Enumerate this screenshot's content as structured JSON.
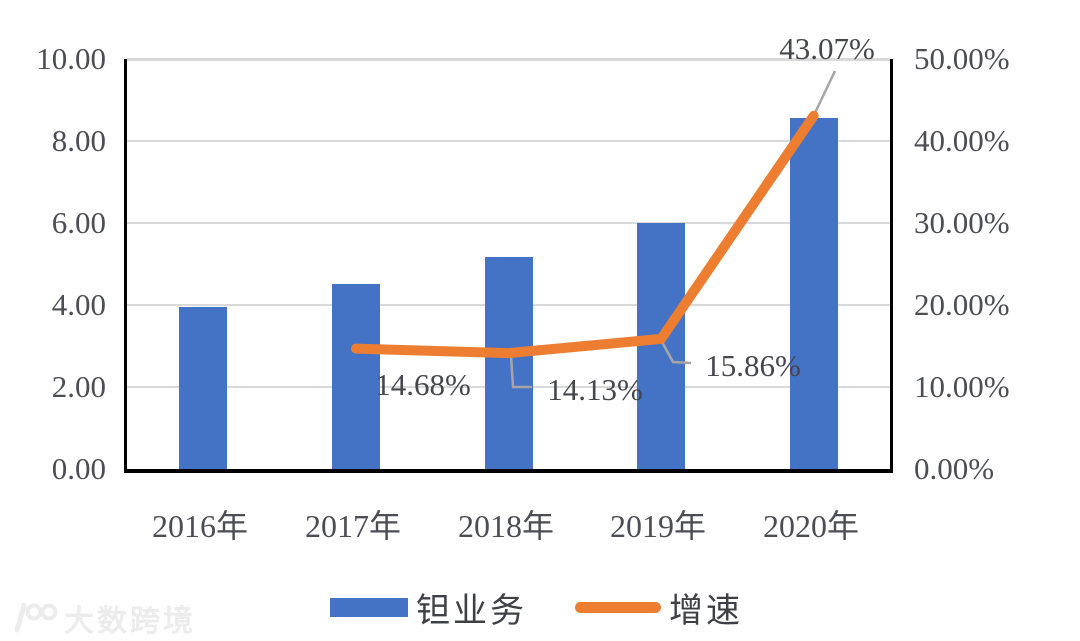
{
  "chart_data": {
    "type": "bar+line",
    "categories": [
      "2016年",
      "2017年",
      "2018年",
      "2019年",
      "2020年"
    ],
    "series": [
      {
        "name": "钽业务",
        "type": "bar",
        "axis": "left",
        "values": [
          3.95,
          4.52,
          5.17,
          6.0,
          8.55
        ]
      },
      {
        "name": "增速",
        "type": "line",
        "axis": "right",
        "values": [
          null,
          14.68,
          14.13,
          15.86,
          43.07
        ],
        "labels": [
          null,
          "14.68%",
          "14.13%",
          "15.86%",
          "43.07%"
        ]
      }
    ],
    "left_axis": {
      "min": 0,
      "max": 10,
      "ticks": [
        "10.00",
        "8.00",
        "6.00",
        "4.00",
        "2.00",
        "0.00"
      ]
    },
    "right_axis": {
      "min": 0,
      "max": 50,
      "ticks": [
        "50.00%",
        "40.00%",
        "30.00%",
        "20.00%",
        "10.00%",
        "0.00%"
      ]
    },
    "legend": {
      "position": "bottom",
      "items": [
        {
          "label": "钽业务",
          "swatch": "bar",
          "color": "#4472C4"
        },
        {
          "label": "增速",
          "swatch": "line",
          "color": "#ED7D31"
        }
      ]
    },
    "grid": true,
    "colors": {
      "bar": "#4472C4",
      "line": "#ED7D31",
      "gridline": "#D9D9D9",
      "axis_border": "#000000",
      "axis_text": "#54555C",
      "leader_line": "#A6A6A6"
    }
  },
  "watermark": {
    "logo": "100-logo",
    "text": "大数跨境"
  }
}
